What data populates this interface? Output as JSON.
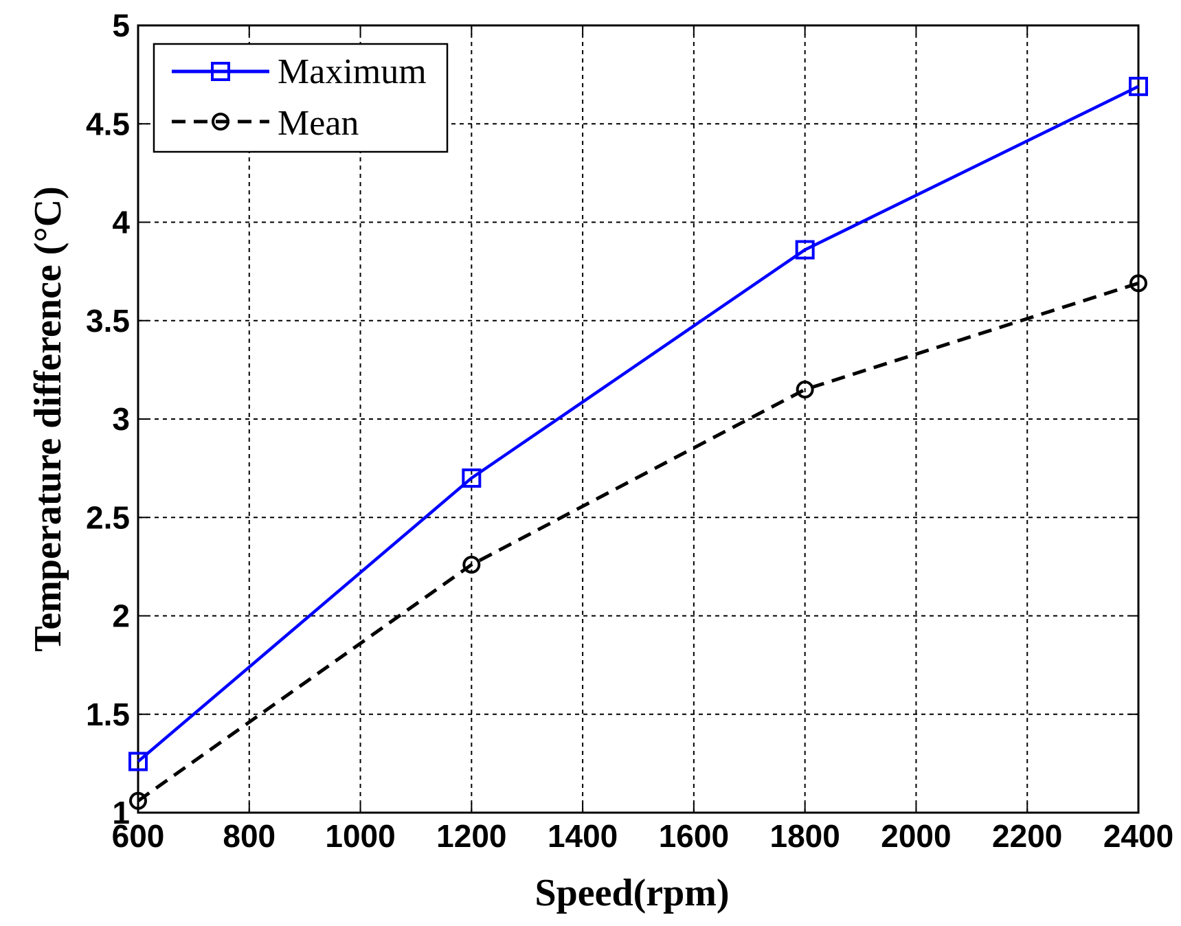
{
  "chart_data": {
    "type": "line",
    "title": "",
    "xlabel": "Speed(rpm)",
    "ylabel": "Temperature difference (°C)",
    "xlim": [
      600,
      2400
    ],
    "ylim": [
      1,
      5
    ],
    "xticks": [
      600,
      800,
      1000,
      1200,
      1400,
      1600,
      1800,
      2000,
      2200,
      2400
    ],
    "yticks": [
      1,
      1.5,
      2,
      2.5,
      3,
      3.5,
      4,
      4.5,
      5
    ],
    "xtick_labels": [
      "600",
      "800",
      "1000",
      "1200",
      "1400",
      "1600",
      "1800",
      "2000",
      "2200",
      "2400"
    ],
    "ytick_labels": [
      "1",
      "1.5",
      "2",
      "2.5",
      "3",
      "3.5",
      "4",
      "4.5",
      "5"
    ],
    "grid": true,
    "legend_position": "top-left",
    "x": [
      600,
      1200,
      1800,
      2400
    ],
    "series": [
      {
        "name": "Maximum",
        "values": [
          1.26,
          2.7,
          3.86,
          4.69
        ],
        "color": "#0000ff",
        "style": "solid",
        "marker": "square"
      },
      {
        "name": "Mean",
        "values": [
          1.06,
          2.26,
          3.15,
          3.69
        ],
        "color": "#000000",
        "style": "dashed",
        "marker": "circle"
      }
    ]
  }
}
